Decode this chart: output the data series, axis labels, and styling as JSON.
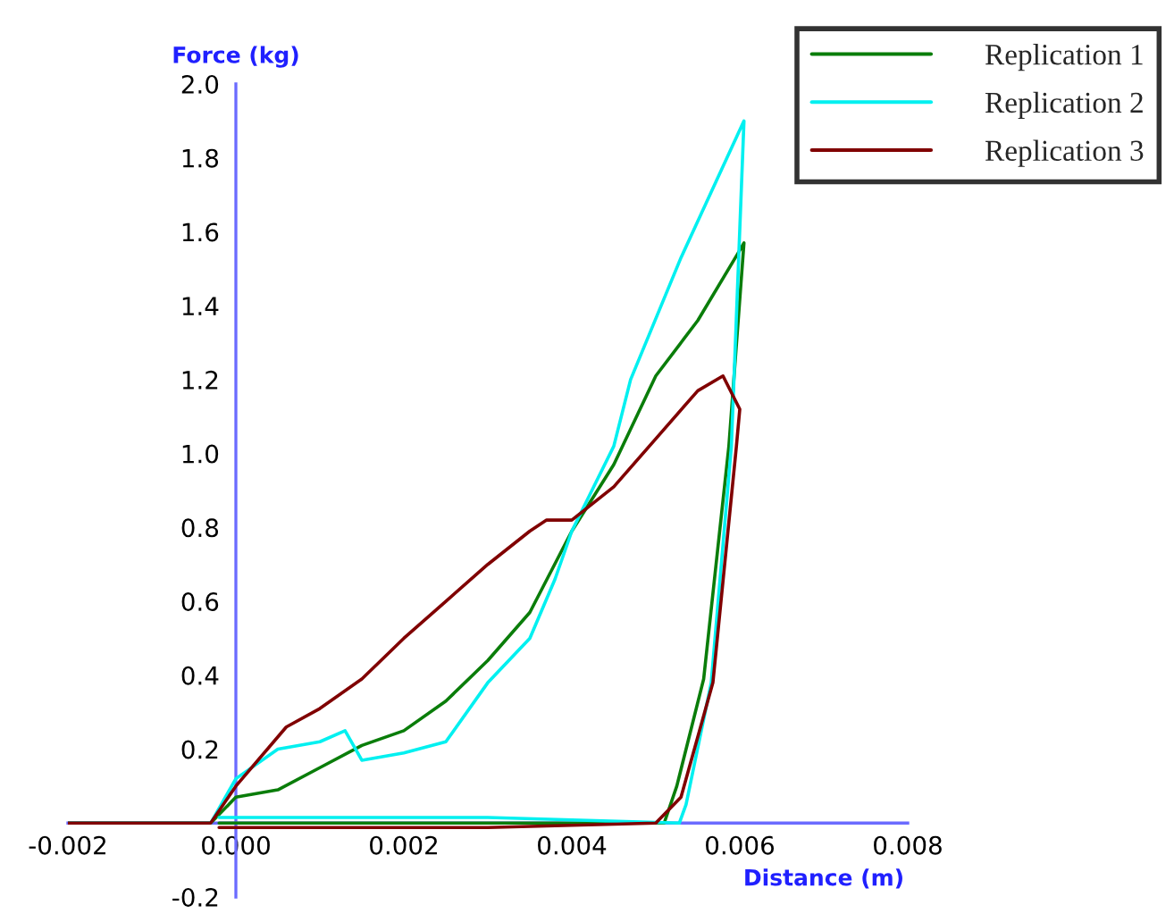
{
  "chart_data": {
    "type": "line",
    "xlabel": "Distance (m)",
    "ylabel": "Force (kg)",
    "xlim": [
      -0.002,
      0.008
    ],
    "ylim": [
      -0.2,
      2.0
    ],
    "xticks": [
      {
        "value": -0.002,
        "label": "-0.002"
      },
      {
        "value": 0,
        "label": "0.000"
      },
      {
        "value": 0.002,
        "label": "0.002"
      },
      {
        "value": 0.004,
        "label": "0.004"
      },
      {
        "value": 0.006,
        "label": "0.006"
      },
      {
        "value": 0.008,
        "label": "0.008"
      }
    ],
    "yticks": [
      -0.2,
      0.2,
      0.4,
      0.6,
      0.8,
      {
        "value": 1.0,
        "label": "1.0"
      },
      1.2,
      1.4,
      1.6,
      1.8,
      {
        "value": 2.0,
        "label": "2.0"
      }
    ],
    "grid": false,
    "legend": "top right",
    "line_style": "solid",
    "marker": "none",
    "series": [
      {
        "name": "Replication 1",
        "color": "#0a7d0a",
        "x": [
          -0.002,
          -0.001,
          -0.0003,
          0.0,
          0.0005,
          0.001,
          0.0015,
          0.002,
          0.0025,
          0.003,
          0.0035,
          0.004,
          0.0045,
          0.005,
          0.0055,
          0.006,
          0.00605,
          0.00587,
          0.00557,
          0.00525,
          0.0051,
          0.003,
          0.001,
          -0.0002
        ],
        "values": [
          0.0,
          0.0,
          0.0,
          0.07,
          0.09,
          0.15,
          0.21,
          0.25,
          0.33,
          0.44,
          0.57,
          0.79,
          0.97,
          1.21,
          1.36,
          1.55,
          1.57,
          1.02,
          0.39,
          0.1,
          0.0,
          0.0,
          0.0,
          0.0
        ]
      },
      {
        "name": "Replication 2",
        "color": "#00f0f0",
        "x": [
          -0.002,
          -0.001,
          -0.0003,
          0.0,
          0.0005,
          0.001,
          0.0013,
          0.0015,
          0.002,
          0.0025,
          0.003,
          0.0035,
          0.0038,
          0.004,
          0.0045,
          0.0047,
          0.0053,
          0.00605,
          0.0059,
          0.00566,
          0.00536,
          0.00528,
          0.003,
          0.001,
          -0.0002
        ],
        "values": [
          0.0,
          0.0,
          0.0,
          0.12,
          0.2,
          0.22,
          0.25,
          0.17,
          0.19,
          0.22,
          0.38,
          0.5,
          0.66,
          0.79,
          1.02,
          1.2,
          1.53,
          1.9,
          1.02,
          0.38,
          0.05,
          0.0,
          0.015,
          0.015,
          0.015
        ]
      },
      {
        "name": "Replication 3",
        "color": "#800000",
        "x": [
          -0.002,
          -0.001,
          -0.0003,
          0.0,
          0.0006,
          0.001,
          0.0015,
          0.002,
          0.0025,
          0.003,
          0.0035,
          0.0037,
          0.004,
          0.0045,
          0.005,
          0.0055,
          0.0058,
          0.006,
          0.00596,
          0.00568,
          0.0053,
          0.005,
          0.003,
          0.001,
          -0.0002
        ],
        "values": [
          0.0,
          0.0,
          0.0,
          0.1,
          0.26,
          0.31,
          0.39,
          0.5,
          0.6,
          0.7,
          0.79,
          0.82,
          0.82,
          0.91,
          1.04,
          1.17,
          1.21,
          1.12,
          1.02,
          0.38,
          0.07,
          0.0,
          -0.012,
          -0.012,
          -0.012
        ]
      }
    ]
  }
}
